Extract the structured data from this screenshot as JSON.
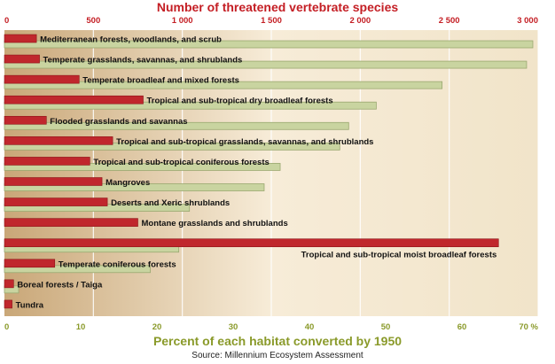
{
  "chart_data": {
    "type": "bar",
    "top_title": "Number of threatened vertebrate species",
    "bottom_title": "Percent of each habitat converted by 1950",
    "source": "Source: Millennium Ecosystem Assessment",
    "top_axis": {
      "range": [
        0,
        3000
      ],
      "ticks": [
        0,
        500,
        1000,
        1500,
        2000,
        2500,
        3000
      ],
      "tick_labels": [
        "0",
        "500",
        "1 000",
        "1 500",
        "2 000",
        "2 500",
        "3 000"
      ]
    },
    "bottom_axis": {
      "range": [
        0,
        70
      ],
      "ticks": [
        0,
        10,
        20,
        30,
        40,
        50,
        60,
        70
      ],
      "tick_labels": [
        "0",
        "10",
        "20",
        "30",
        "40",
        "50",
        "60",
        "70 %"
      ]
    },
    "series": [
      {
        "name": "Percent of each habitat converted by 1950",
        "color": "#c0272d",
        "values": [
          4.2,
          4.6,
          9.8,
          18.2,
          5.5,
          14.2,
          11.2,
          12.8,
          13.5,
          17.5,
          64.8,
          6.6,
          1.2,
          1.0
        ]
      },
      {
        "name": "Number of threatened vertebrate species",
        "color": "#c9d4a0",
        "values": [
          2970,
          2935,
          2460,
          2090,
          1935,
          1885,
          1550,
          1460,
          1040,
          0,
          980,
          820,
          80,
          0
        ]
      }
    ],
    "categories": [
      "Mediterranean forests, woodlands, and scrub",
      "Temperate grasslands, savannas, and shrublands",
      "Temperate broadleaf and mixed forests",
      "Tropical and sub-tropical dry broadleaf forests",
      "Flooded grasslands and savannas",
      "Tropical and sub-tropical grasslands, savannas, and shrublands",
      "Tropical and sub-tropical coniferous forests",
      "Mangroves",
      "Deserts and Xeric shrublands",
      "Montane grasslands and shrublands",
      "Tropical and sub-tropical moist broadleaf forests",
      "Temperate coniferous forests",
      "Boreal forests / Taiga",
      "Tundra"
    ],
    "label_below": [
      false,
      false,
      false,
      false,
      false,
      false,
      false,
      false,
      false,
      false,
      true,
      false,
      false,
      false
    ],
    "colors": {
      "top_title": "#c41e24",
      "bottom_title": "#8a9a2a",
      "background_left": "#f7ecd8",
      "background_right": "#c9a778"
    }
  }
}
